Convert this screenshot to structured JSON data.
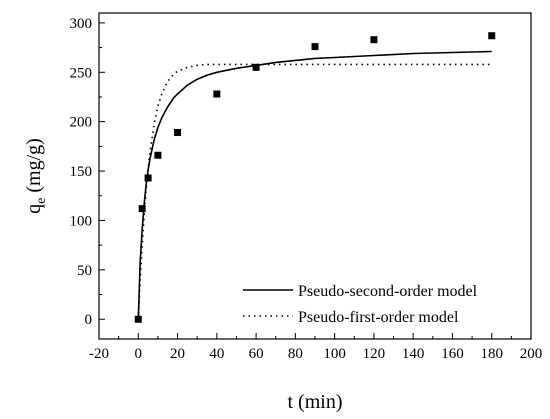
{
  "chart_data": {
    "type": "scatter",
    "xlabel": "t (min)",
    "ylabel_main": "q",
    "ylabel_sub": "e",
    "ylabel_unit": " (mg/g)",
    "xlim": [
      -20,
      200
    ],
    "ylim": [
      -20,
      310
    ],
    "xticks": [
      -20,
      0,
      20,
      40,
      60,
      80,
      100,
      120,
      140,
      160,
      180,
      200
    ],
    "yticks": [
      0,
      50,
      100,
      150,
      200,
      250,
      300
    ],
    "grid": false,
    "legend_position": "bottom-right",
    "data_points": {
      "x": [
        0,
        2,
        5,
        10,
        20,
        40,
        60,
        90,
        120,
        180
      ],
      "y": [
        0,
        112,
        143,
        166,
        189,
        228,
        255,
        276,
        283,
        287
      ]
    },
    "series": [
      {
        "name": "Pseudo-second-order model",
        "style": "solid",
        "x": [
          0,
          1,
          2,
          3,
          4,
          5,
          6,
          8,
          10,
          12,
          15,
          18,
          20,
          25,
          30,
          35,
          40,
          45,
          50,
          60,
          70,
          80,
          90,
          100,
          120,
          140,
          160,
          180
        ],
        "y": [
          0,
          59,
          91,
          117,
          136,
          151,
          163,
          181,
          194,
          204,
          215,
          224,
          228,
          237,
          243,
          247,
          250,
          252,
          254,
          257,
          260,
          262,
          264,
          265,
          267,
          269,
          270,
          271
        ]
      },
      {
        "name": "Pseudo-first-order model",
        "style": "dotted",
        "x": [
          0,
          1,
          2,
          3,
          4,
          5,
          6,
          8,
          10,
          12,
          15,
          18,
          20,
          25,
          30,
          35,
          40,
          45,
          50,
          60,
          70,
          80,
          90,
          100,
          120,
          140,
          160,
          180
        ],
        "y": [
          0,
          40,
          75,
          106,
          131,
          152,
          170,
          197,
          216,
          228,
          241,
          248,
          251,
          255,
          257,
          258,
          258,
          258,
          258,
          258,
          258,
          258,
          258,
          258,
          258,
          258,
          258,
          258
        ]
      }
    ]
  }
}
